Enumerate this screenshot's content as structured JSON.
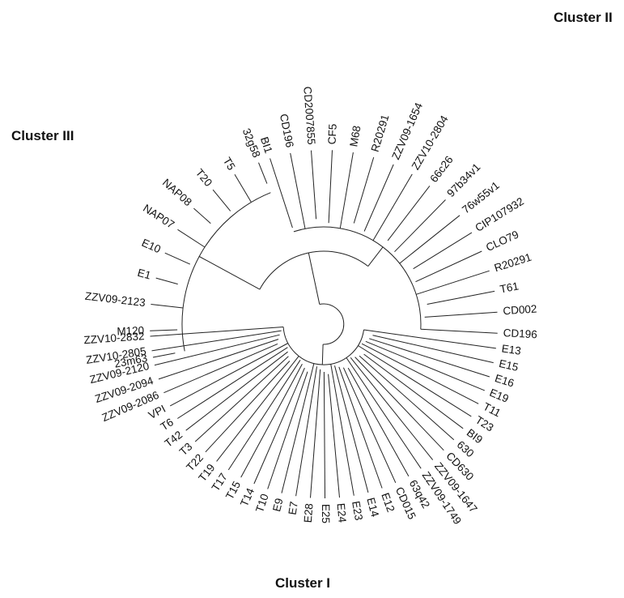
{
  "clusters": {
    "cluster_1": "Cluster I",
    "cluster_2": "Cluster II",
    "cluster_3": "Cluster III"
  },
  "tree": {
    "line_color": "#222222",
    "leaves": [
      {
        "label": "ZZV10-2832",
        "cluster": "I"
      },
      {
        "label": "ZZV10-2805",
        "cluster": "I"
      },
      {
        "label": "ZZV09-2120",
        "cluster": "I"
      },
      {
        "label": "ZZV09-2094",
        "cluster": "I"
      },
      {
        "label": "ZZV09-2086",
        "cluster": "I"
      },
      {
        "label": "VPI",
        "cluster": "I"
      },
      {
        "label": "T6",
        "cluster": "I"
      },
      {
        "label": "T42",
        "cluster": "I"
      },
      {
        "label": "T3",
        "cluster": "I"
      },
      {
        "label": "T22",
        "cluster": "I"
      },
      {
        "label": "T19",
        "cluster": "I"
      },
      {
        "label": "T17",
        "cluster": "I"
      },
      {
        "label": "T15",
        "cluster": "I"
      },
      {
        "label": "T14",
        "cluster": "I"
      },
      {
        "label": "T10",
        "cluster": "I"
      },
      {
        "label": "E9",
        "cluster": "I"
      },
      {
        "label": "E7",
        "cluster": "I"
      },
      {
        "label": "E28",
        "cluster": "I"
      },
      {
        "label": "E25",
        "cluster": "I"
      },
      {
        "label": "E24",
        "cluster": "I"
      },
      {
        "label": "E23",
        "cluster": "I"
      },
      {
        "label": "E14",
        "cluster": "I"
      },
      {
        "label": "E12",
        "cluster": "I"
      },
      {
        "label": "CD015",
        "cluster": "I"
      },
      {
        "label": "63q42",
        "cluster": "I"
      },
      {
        "label": "ZZV09-1749",
        "cluster": "I"
      },
      {
        "label": "ZZV09-1647",
        "cluster": "I"
      },
      {
        "label": "CD630",
        "cluster": "I"
      },
      {
        "label": "630",
        "cluster": "I"
      },
      {
        "label": "BI9",
        "cluster": "I"
      },
      {
        "label": "T23",
        "cluster": "I"
      },
      {
        "label": "T11",
        "cluster": "I"
      },
      {
        "label": "E19",
        "cluster": "I"
      },
      {
        "label": "E16",
        "cluster": "I"
      },
      {
        "label": "E15",
        "cluster": "I"
      },
      {
        "label": "E13",
        "cluster": "I"
      },
      {
        "label": "CD196",
        "cluster": "II"
      },
      {
        "label": "CD002",
        "cluster": "II"
      },
      {
        "label": "T61",
        "cluster": "II"
      },
      {
        "label": "R20291",
        "cluster": "II"
      },
      {
        "label": "CLO79",
        "cluster": "II"
      },
      {
        "label": "CIP107932",
        "cluster": "II"
      },
      {
        "label": "76w55v1",
        "cluster": "II"
      },
      {
        "label": "97b34v1",
        "cluster": "II"
      },
      {
        "label": "66c26",
        "cluster": "II"
      },
      {
        "label": "ZZV10-2804",
        "cluster": "II"
      },
      {
        "label": "ZZV09-1654",
        "cluster": "II"
      },
      {
        "label": "R20291",
        "cluster": "II"
      },
      {
        "label": "M68",
        "cluster": "II"
      },
      {
        "label": "CF5",
        "cluster": "II"
      },
      {
        "label": "CD2007855",
        "cluster": "II"
      },
      {
        "label": "CD196",
        "cluster": "II"
      },
      {
        "label": "BI1",
        "cluster": "II"
      },
      {
        "label": "32g58",
        "cluster": "III"
      },
      {
        "label": "T5",
        "cluster": "III"
      },
      {
        "label": "T20",
        "cluster": "III"
      },
      {
        "label": "NAP08",
        "cluster": "III"
      },
      {
        "label": "NAP07",
        "cluster": "III"
      },
      {
        "label": "E10",
        "cluster": "III"
      },
      {
        "label": "E1",
        "cluster": "III"
      },
      {
        "label": "ZZV09-2123",
        "cluster": "III"
      },
      {
        "label": "M120",
        "cluster": "III"
      },
      {
        "label": "23m63",
        "cluster": "III"
      }
    ]
  }
}
